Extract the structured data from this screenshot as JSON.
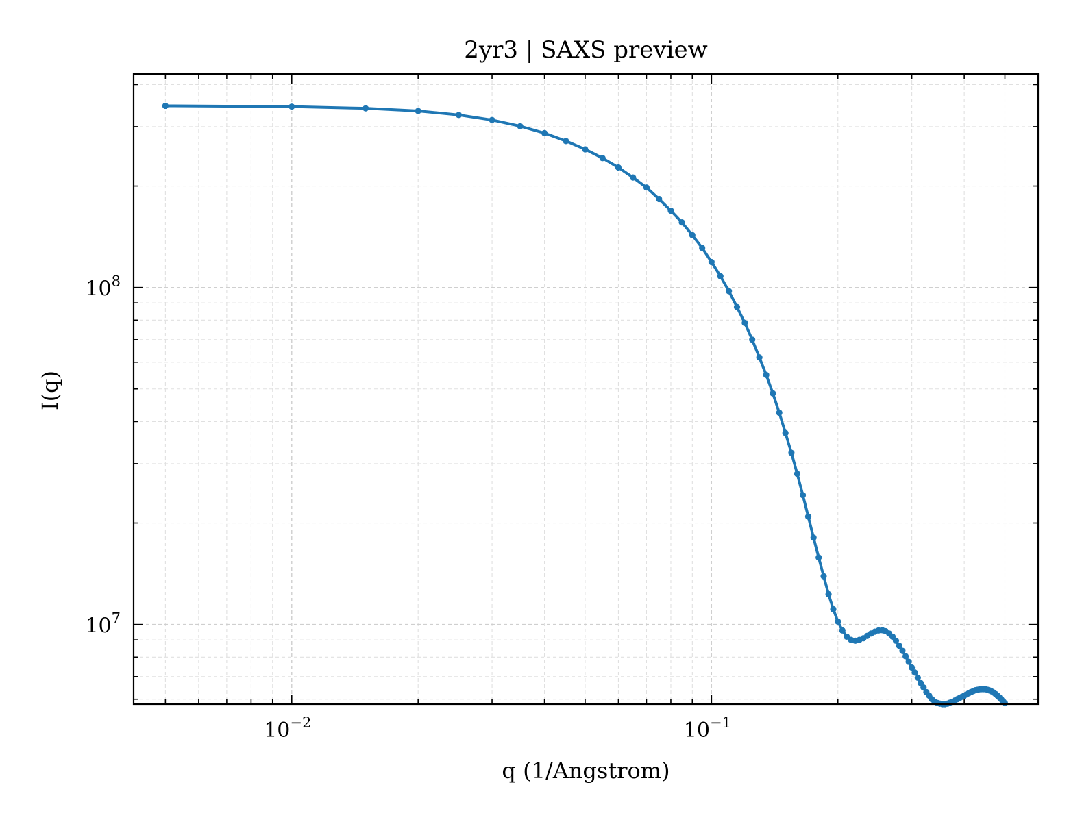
{
  "chart_data": {
    "type": "line",
    "title": "2yr3 | SAXS preview",
    "xlabel": "q (1/Angstrom)",
    "ylabel": "I(q)",
    "xscale": "log",
    "yscale": "log",
    "xlim": [
      0.0042,
      0.6
    ],
    "ylim": [
      5800000,
      430000000
    ],
    "grid": true,
    "series_color": "#1f77b4",
    "x_ticks": [
      {
        "value": 0.01,
        "base": "10",
        "exp": "−2"
      },
      {
        "value": 0.1,
        "base": "10",
        "exp": "−1"
      }
    ],
    "y_ticks": [
      {
        "value": 10000000,
        "base": "10",
        "exp": "7"
      },
      {
        "value": 100000000,
        "base": "10",
        "exp": "8"
      }
    ],
    "series": [
      {
        "x": [
          0.005,
          0.01,
          0.015,
          0.02,
          0.025,
          0.03,
          0.035,
          0.04,
          0.045,
          0.05,
          0.055,
          0.06,
          0.065,
          0.07,
          0.075,
          0.08,
          0.085,
          0.09,
          0.095,
          0.1,
          0.105,
          0.11,
          0.115,
          0.12,
          0.125,
          0.13,
          0.135,
          0.14,
          0.145,
          0.15,
          0.155,
          0.16,
          0.165,
          0.17,
          0.175,
          0.18,
          0.185,
          0.19,
          0.195,
          0.2,
          0.205,
          0.21,
          0.215,
          0.22,
          0.225,
          0.23,
          0.235,
          0.24,
          0.245,
          0.25,
          0.255,
          0.26,
          0.265,
          0.27,
          0.275,
          0.28,
          0.285,
          0.29,
          0.295,
          0.3,
          0.305,
          0.31,
          0.315,
          0.32,
          0.325,
          0.33,
          0.335,
          0.34,
          0.345,
          0.35,
          0.355,
          0.36,
          0.365,
          0.37,
          0.375,
          0.38,
          0.385,
          0.39,
          0.395,
          0.4,
          0.405,
          0.41,
          0.415,
          0.42,
          0.425,
          0.43,
          0.435,
          0.44,
          0.445,
          0.45,
          0.455,
          0.46,
          0.465,
          0.47,
          0.475,
          0.48,
          0.485,
          0.49,
          0.495,
          0.5
        ],
        "y": [
          346000000.0,
          344000000.0,
          340000000.0,
          334000000.0,
          325000000.0,
          314000000.0,
          301000000.0,
          287000000.0,
          272000000.0,
          257000000.0,
          242000000.0,
          227000000.0,
          212000000.0,
          198000000.0,
          183000000.0,
          169000000.0,
          156000000.0,
          143000000.0,
          131000000.0,
          119000000.0,
          108000000.0,
          97500000.0,
          87500000.0,
          78500000.0,
          70000000.0,
          62000000.0,
          55000000.0,
          48500000.0,
          42500000.0,
          37000000.0,
          32300000.0,
          28000000.0,
          24200000.0,
          20900000.0,
          18100000.0,
          15800000.0,
          13900000.0,
          12300000.0,
          11100000.0,
          10200000.0,
          9600000.0,
          9200000.0,
          9000000.0,
          8950000.0,
          9000000.0,
          9100000.0,
          9250000.0,
          9400000.0,
          9520000.0,
          9600000.0,
          9620000.0,
          9550000.0,
          9400000.0,
          9200000.0,
          8950000.0,
          8650000.0,
          8350000.0,
          8050000.0,
          7750000.0,
          7450000.0,
          7200000.0,
          6950000.0,
          6700000.0,
          6500000.0,
          6300000.0,
          6150000.0,
          6000000.0,
          5900000.0,
          5850000.0,
          5820000.0,
          5800000.0,
          5800000.0,
          5820000.0,
          5860000.0,
          5900000.0,
          5950000.0,
          6000000.0,
          6050000.0,
          6100000.0,
          6150000.0,
          6200000.0,
          6250000.0,
          6300000.0,
          6340000.0,
          6380000.0,
          6400000.0,
          6420000.0,
          6430000.0,
          6430000.0,
          6420000.0,
          6400000.0,
          6370000.0,
          6330000.0,
          6280000.0,
          6220000.0,
          6150000.0,
          6080000.0,
          6000000.0,
          5920000.0,
          5840000.0
        ]
      }
    ]
  }
}
